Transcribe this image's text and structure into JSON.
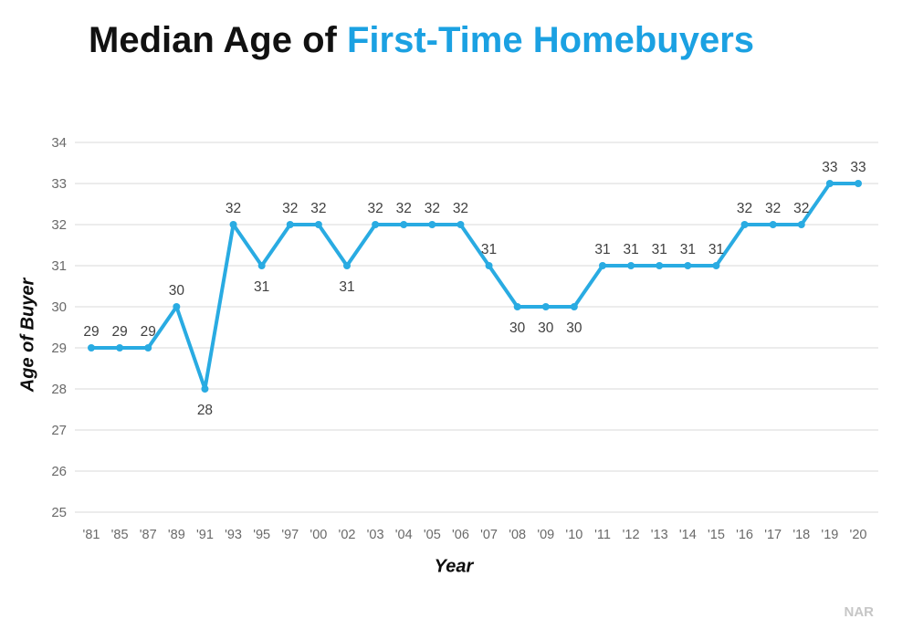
{
  "title": {
    "black": "Median Age of ",
    "accent": "First-Time Homebuyers"
  },
  "attribution": "NAR",
  "colors": {
    "accent_title": "#1ba1e2",
    "line": "#29abe2",
    "grid": "#d9d9d9",
    "tick": "#6a6a6a",
    "data_label": "#3f3f3f",
    "axis_title": "#0d0d0d",
    "attribution": "#c6c6c6"
  },
  "chart_data": {
    "type": "line",
    "title": "Median Age of First-Time Homebuyers",
    "xlabel": "Year",
    "ylabel": "Age of Buyer",
    "x": [
      "'81",
      "'85",
      "'87",
      "'89",
      "'91",
      "'93",
      "'95",
      "'97",
      "'00",
      "'02",
      "'03",
      "'04",
      "'05",
      "'06",
      "'07",
      "'08",
      "'09",
      "'10",
      "'11",
      "'12",
      "'13",
      "'14",
      "'15",
      "'16",
      "'17",
      "'18",
      "'19",
      "'20"
    ],
    "values": [
      29,
      29,
      29,
      30,
      28,
      32,
      31,
      32,
      32,
      31,
      32,
      32,
      32,
      32,
      31,
      30,
      30,
      30,
      31,
      31,
      31,
      31,
      31,
      32,
      32,
      32,
      33,
      33
    ],
    "label_positions": [
      "above",
      "above",
      "above",
      "above",
      "below",
      "above",
      "below",
      "above",
      "above",
      "below",
      "above",
      "above",
      "above",
      "above",
      "above",
      "below",
      "below",
      "below",
      "above",
      "above",
      "above",
      "above",
      "above",
      "above",
      "above",
      "above",
      "above",
      "above"
    ],
    "ylim": [
      25,
      34
    ],
    "yticks": [
      25,
      26,
      27,
      28,
      29,
      30,
      31,
      32,
      33,
      34
    ],
    "grid": true,
    "legend": "none",
    "marker": "circle"
  }
}
